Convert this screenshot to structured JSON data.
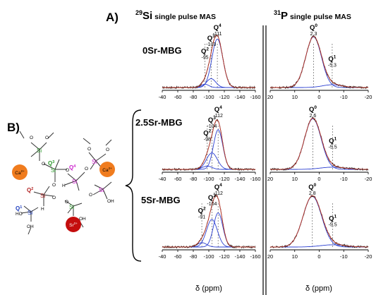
{
  "panel_a_label": "A)",
  "panel_b_label": "B)",
  "si_header": {
    "iso": "29",
    "el": "Si",
    "rest": " single pulse MAS"
  },
  "p_header": {
    "iso": "31",
    "el": "P",
    "rest": " single pulse MAS"
  },
  "xlabel": "δ (ppm)",
  "colors": {
    "experimental": "#1a1a1a",
    "fit": "#c0392b",
    "component": "#2b3fd1",
    "guide": "#666666",
    "Q3": "#2e9a2e",
    "Q4": "#cc22cc",
    "Q2": "#b22222",
    "Q1": "#1f3fbf",
    "Ca": "#f07c1e",
    "Sr": "#c40d0d"
  },
  "chart_data": [
    {
      "type": "line",
      "sample": "0Sr-MBG",
      "nucleus": "29Si",
      "xlim": [
        -40,
        -160
      ],
      "xticks": [
        -40,
        -60,
        -80,
        -100,
        -120,
        -140,
        -160
      ],
      "peaks": [
        {
          "label": "Q2",
          "sup": "2",
          "ppm": -95,
          "value_label": "-95"
        },
        {
          "label": "Q3",
          "sup": "3",
          "ppm": -103,
          "value_label": "-103"
        },
        {
          "label": "Q4",
          "sup": "4",
          "ppm": -111,
          "value_label": "-111"
        }
      ],
      "components": [
        {
          "center": -95,
          "height": 0.06,
          "width": 5
        },
        {
          "center": -103,
          "height": 0.16,
          "width": 6
        },
        {
          "center": -111,
          "height": 0.88,
          "width": 7
        }
      ]
    },
    {
      "type": "line",
      "sample": "2.5Sr-MBG",
      "nucleus": "29Si",
      "xlim": [
        -40,
        -160
      ],
      "xticks": [
        -40,
        -60,
        -80,
        -100,
        -120,
        -140,
        -160
      ],
      "peaks": [
        {
          "label": "Q2",
          "sup": "2",
          "ppm": -98,
          "value_label": "-98"
        },
        {
          "label": "Q3",
          "sup": "3",
          "ppm": -104,
          "value_label": "-104"
        },
        {
          "label": "Q4",
          "sup": "4",
          "ppm": -112,
          "value_label": "-112"
        }
      ],
      "components": [
        {
          "center": -98,
          "height": 0.06,
          "width": 6
        },
        {
          "center": -104,
          "height": 0.3,
          "width": 7
        },
        {
          "center": -112,
          "height": 0.72,
          "width": 6
        }
      ]
    },
    {
      "type": "line",
      "sample": "5Sr-MBG",
      "nucleus": "29Si",
      "xlim": [
        -40,
        -160
      ],
      "xticks": [
        -40,
        -60,
        -80,
        -100,
        -120,
        -140,
        -160
      ],
      "peaks": [
        {
          "label": "Q2",
          "sup": "2",
          "ppm": -91,
          "value_label": "-91"
        },
        {
          "label": "Q3",
          "sup": "3",
          "ppm": -104,
          "value_label": "-104"
        },
        {
          "label": "Q4",
          "sup": "4",
          "ppm": -112,
          "value_label": "-112"
        }
      ],
      "components": [
        {
          "center": -91,
          "height": 0.08,
          "width": 6
        },
        {
          "center": -104,
          "height": 0.5,
          "width": 7
        },
        {
          "center": -112,
          "height": 0.62,
          "width": 6
        }
      ]
    },
    {
      "type": "line",
      "sample": "0Sr-MBG",
      "nucleus": "31P",
      "xlim": [
        20,
        -20
      ],
      "xticks": [
        20,
        10,
        0,
        -10,
        -20
      ],
      "peaks": [
        {
          "label": "Q0",
          "sup": "0",
          "ppm": 2.3,
          "value_label": "2.3"
        },
        {
          "label": "Q1",
          "sup": "1",
          "ppm": -5.3,
          "value_label": "-5.3"
        }
      ],
      "components": [
        {
          "center": 2.3,
          "height": 0.92,
          "width": 3.2
        },
        {
          "center": -5.3,
          "height": 0.05,
          "width": 4
        }
      ]
    },
    {
      "type": "line",
      "sample": "2.5Sr-MBG",
      "nucleus": "31P",
      "xlim": [
        20,
        -20
      ],
      "xticks": [
        20,
        10,
        0,
        -10,
        -20
      ],
      "peaks": [
        {
          "label": "Q0",
          "sup": "0",
          "ppm": 2.6,
          "value_label": "2.6"
        },
        {
          "label": "Q1",
          "sup": "1",
          "ppm": -5.5,
          "value_label": "-5.5"
        }
      ],
      "components": [
        {
          "center": 2.6,
          "height": 0.92,
          "width": 3.4
        },
        {
          "center": -5.5,
          "height": 0.04,
          "width": 5
        }
      ]
    },
    {
      "type": "line",
      "sample": "5Sr-MBG",
      "nucleus": "31P",
      "xlim": [
        20,
        -20
      ],
      "xticks": [
        20,
        10,
        0,
        -10,
        -20
      ],
      "peaks": [
        {
          "label": "Q0",
          "sup": "0",
          "ppm": 2.8,
          "value_label": "2.8"
        },
        {
          "label": "Q1",
          "sup": "1",
          "ppm": -5.5,
          "value_label": "-5.5"
        }
      ],
      "components": [
        {
          "center": 2.8,
          "height": 0.92,
          "width": 3.8
        },
        {
          "center": -5.5,
          "height": 0.04,
          "width": 5
        }
      ]
    }
  ],
  "diagram_b": {
    "ion_labels": {
      "ca": "Ca",
      "ca_charge": "2+",
      "sr": "Sr",
      "sr_charge": "2+"
    },
    "si": "Si",
    "o": "O",
    "oh": "OH",
    "ho": "HO",
    "h": "H",
    "q": "Q"
  }
}
